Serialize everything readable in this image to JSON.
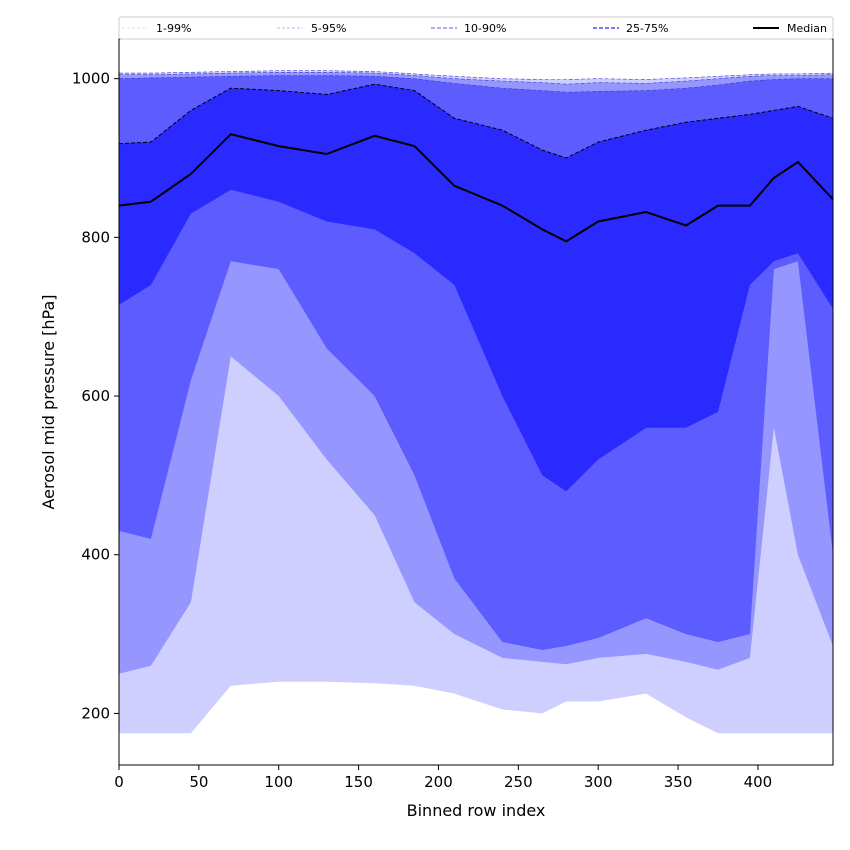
{
  "chart_data": {
    "type": "area",
    "title": "",
    "xlabel": "Binned row index",
    "ylabel": "Aerosol mid pressure [hPa]",
    "xlim": [
      0,
      447
    ],
    "ylim": [
      135,
      1050
    ],
    "x_ticks": [
      0,
      50,
      100,
      150,
      200,
      250,
      300,
      350,
      400
    ],
    "y_ticks": [
      200,
      400,
      600,
      800,
      1000
    ],
    "legend_position": "top (above plot, horizontal)",
    "colors": {
      "band_1_99": "#cfcfff",
      "band_5_95": "#9696ff",
      "band_10_90": "#5c5cff",
      "band_25_75": "#2a2aff",
      "median": "#000000"
    },
    "x": [
      0,
      20,
      45,
      70,
      100,
      130,
      160,
      185,
      210,
      240,
      265,
      280,
      300,
      330,
      355,
      375,
      395,
      410,
      425,
      447
    ],
    "series": [
      {
        "name": "1-99%",
        "lower": [
          175,
          175,
          175,
          235,
          240,
          240,
          238,
          235,
          225,
          205,
          200,
          215,
          215,
          225,
          195,
          175,
          175,
          175,
          175,
          175
        ],
        "upper": [
          1007,
          1007,
          1008,
          1009,
          1010,
          1010,
          1009,
          1006,
          1003,
          1000,
          999,
          999,
          1000,
          999,
          1001,
          1003,
          1005,
          1006,
          1006,
          1007
        ]
      },
      {
        "name": "5-95%",
        "lower": [
          250,
          260,
          340,
          650,
          600,
          520,
          450,
          340,
          300,
          270,
          265,
          262,
          270,
          275,
          265,
          255,
          270,
          560,
          400,
          285
        ],
        "upper": [
          1005,
          1005,
          1006,
          1007,
          1008,
          1008,
          1007,
          1004,
          1000,
          997,
          995,
          993,
          995,
          994,
          997,
          1000,
          1003,
          1004,
          1004,
          1005
        ]
      },
      {
        "name": "10-90%",
        "lower": [
          430,
          420,
          620,
          770,
          760,
          660,
          600,
          500,
          370,
          290,
          280,
          285,
          295,
          320,
          300,
          290,
          300,
          760,
          770,
          400
        ],
        "upper": [
          1000,
          1001,
          1002,
          1003,
          1004,
          1004,
          1003,
          1000,
          994,
          988,
          985,
          983,
          984,
          985,
          988,
          992,
          997,
          999,
          1000,
          1000
        ]
      },
      {
        "name": "25-75%",
        "lower": [
          715,
          740,
          830,
          860,
          845,
          820,
          810,
          780,
          740,
          600,
          500,
          480,
          520,
          560,
          560,
          580,
          740,
          770,
          780,
          710
        ],
        "upper": [
          918,
          920,
          960,
          988,
          985,
          980,
          993,
          985,
          950,
          935,
          910,
          900,
          920,
          935,
          945,
          950,
          955,
          960,
          965,
          950
        ]
      },
      {
        "name": "Median",
        "values": [
          840,
          845,
          880,
          930,
          915,
          905,
          928,
          915,
          865,
          840,
          810,
          795,
          820,
          832,
          815,
          840,
          840,
          875,
          895,
          848
        ]
      }
    ]
  }
}
